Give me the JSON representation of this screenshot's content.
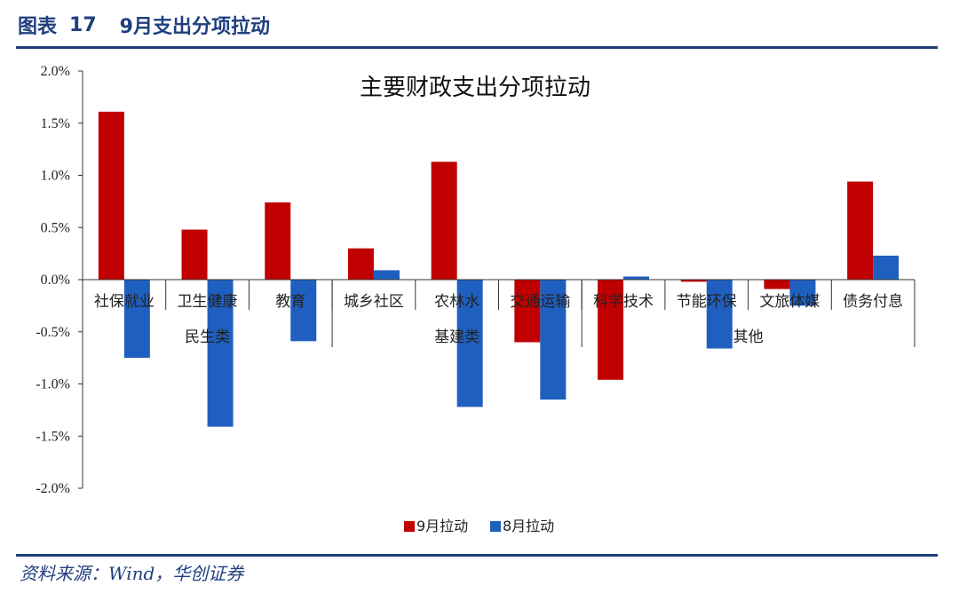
{
  "header": {
    "figure_label": "图表",
    "figure_number": "17",
    "title": "9月支出分项拉动"
  },
  "footer": {
    "source": "资料来源：Wind，华创证券"
  },
  "colors": {
    "sep": "#c00000",
    "aug": "#1f5fbf",
    "brand": "#1f3f7f"
  },
  "chart_data": {
    "type": "bar",
    "title": "主要财政支出分项拉动",
    "xlabel": "",
    "ylabel": "",
    "ylim": [
      -0.02,
      0.02
    ],
    "y_ticks": [
      "2.0%",
      "1.5%",
      "1.0%",
      "0.5%",
      "0.0%",
      "-0.5%",
      "-1.0%",
      "-1.5%",
      "-2.0%"
    ],
    "y_tick_values": [
      0.02,
      0.015,
      0.01,
      0.005,
      0,
      -0.005,
      -0.01,
      -0.015,
      -0.02
    ],
    "categories": [
      "社保就业",
      "卫生健康",
      "教育",
      "城乡社区",
      "农林水",
      "交通运输",
      "科学技术",
      "节能环保",
      "文旅体媒",
      "债务付息"
    ],
    "groups": [
      {
        "label": "民生类",
        "start": 0,
        "end": 2
      },
      {
        "label": "基建类",
        "start": 3,
        "end": 5
      },
      {
        "label": "其他",
        "start": 6,
        "end": 9
      }
    ],
    "series": [
      {
        "name": "9月拉动",
        "values": [
          0.0161,
          0.0048,
          0.0074,
          0.003,
          0.0113,
          -0.006,
          -0.0096,
          -0.0002,
          -0.0009,
          0.0094
        ]
      },
      {
        "name": "8月拉动",
        "values": [
          -0.0075,
          -0.0141,
          -0.0059,
          0.0009,
          -0.0122,
          -0.0115,
          0.0003,
          -0.0066,
          -0.0025,
          0.0023
        ]
      }
    ],
    "legend_position": "bottom",
    "grid": false
  }
}
